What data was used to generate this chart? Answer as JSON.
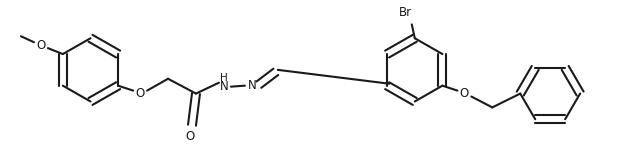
{
  "background_color": "#ffffff",
  "line_color": "#1a1a1a",
  "line_width": 1.5,
  "font_size": 8.5,
  "figsize": [
    6.34,
    1.45
  ],
  "dpi": 100,
  "xlim": [
    0,
    634
  ],
  "ylim": [
    0,
    145
  ]
}
